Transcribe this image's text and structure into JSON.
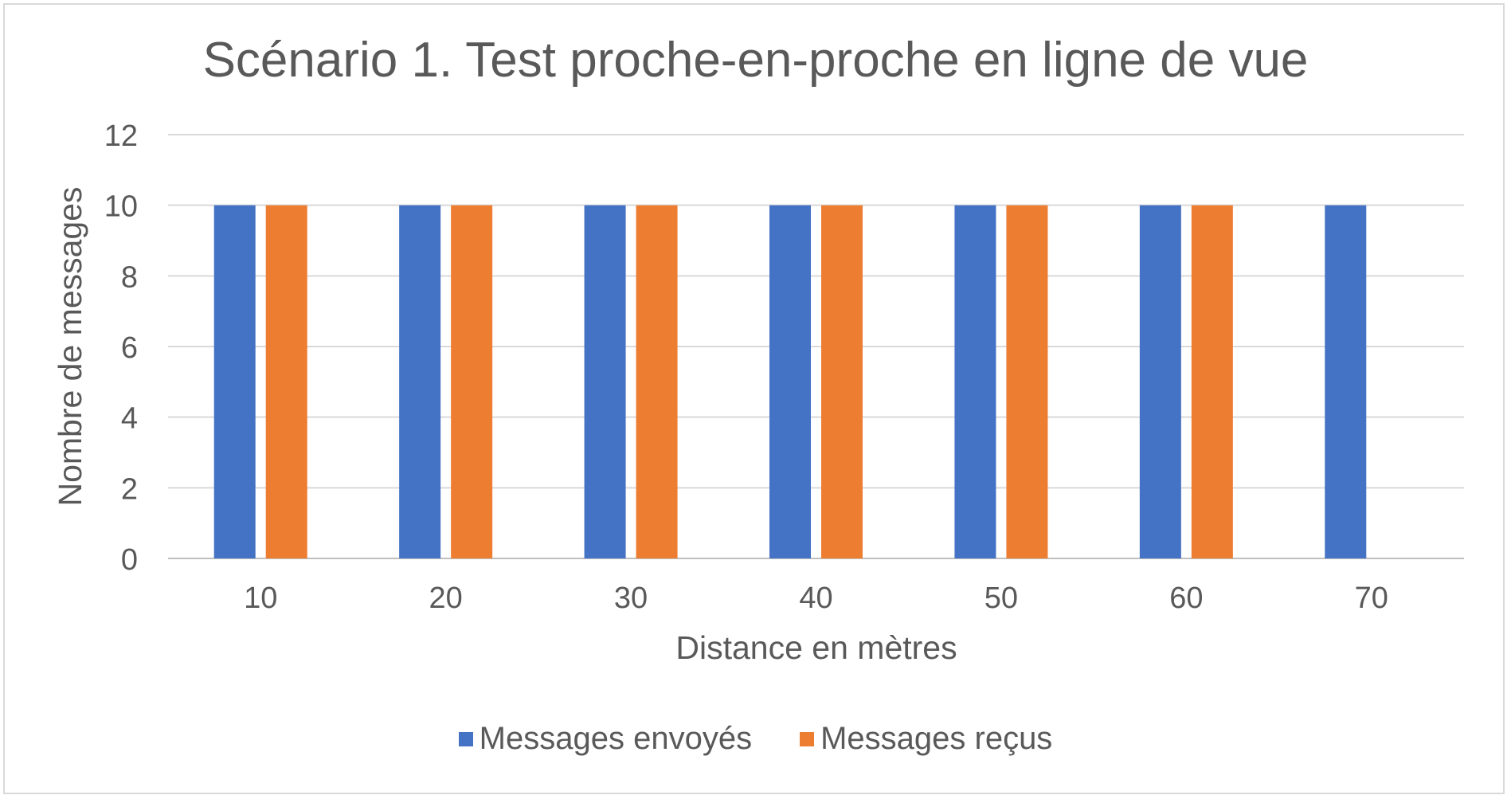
{
  "chart_data": {
    "type": "bar",
    "title": "Scénario 1. Test proche-en-proche en ligne de vue",
    "xlabel": "Distance en mètres",
    "ylabel": "Nombre de messages",
    "categories": [
      "10",
      "20",
      "30",
      "40",
      "50",
      "60",
      "70"
    ],
    "ylim": [
      0,
      12
    ],
    "yticks": [
      "0",
      "2",
      "4",
      "6",
      "8",
      "10",
      "12"
    ],
    "grid": true,
    "legend_position": "bottom",
    "series": [
      {
        "name": "Messages envoyés",
        "color": "#4472C4",
        "values": [
          10,
          10,
          10,
          10,
          10,
          10,
          10
        ]
      },
      {
        "name": "Messages reçus",
        "color": "#ED7D31",
        "values": [
          10,
          10,
          10,
          10,
          10,
          10,
          0
        ]
      }
    ]
  }
}
